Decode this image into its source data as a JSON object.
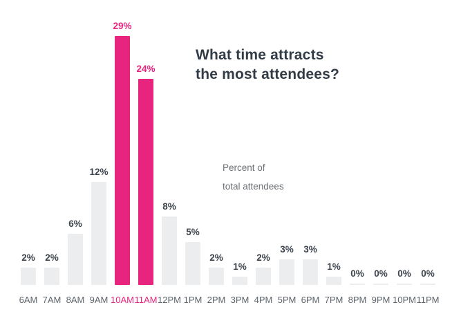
{
  "title": "What time attracts\nthe most attendees?",
  "annotation": "Percent of\ntotal attendees",
  "chart_data": {
    "type": "bar",
    "title": "What time attracts the most attendees?",
    "annotation": "Percent of total attendees",
    "categories": [
      "6AM",
      "7AM",
      "8AM",
      "9AM",
      "10AM",
      "11AM",
      "12PM",
      "1PM",
      "2PM",
      "3PM",
      "4PM",
      "5PM",
      "6PM",
      "7PM",
      "8PM",
      "9PM",
      "10PM",
      "11PM"
    ],
    "values": [
      2,
      2,
      6,
      12,
      29,
      24,
      8,
      5,
      2,
      1,
      2,
      3,
      3,
      1,
      0,
      0,
      0,
      0
    ],
    "value_labels": [
      "2%",
      "2%",
      "6%",
      "12%",
      "29%",
      "24%",
      "8%",
      "5%",
      "2%",
      "1%",
      "2%",
      "3%",
      "3%",
      "1%",
      "0%",
      "0%",
      "0%",
      "0%"
    ],
    "highlighted_categories": [
      "10AM",
      "11AM"
    ],
    "xlabel": "",
    "ylabel": "Percent of total attendees",
    "ylim": [
      0,
      29
    ],
    "grid": false,
    "legend": "none",
    "axis_lines": "none",
    "colors": {
      "highlight": "#e7257e",
      "bar": "#ebedef",
      "value_label": "#3d444d",
      "axis_label": "#5d646c",
      "title": "#323c46",
      "annotation": "#6b7177",
      "background": "#ffffff"
    }
  }
}
